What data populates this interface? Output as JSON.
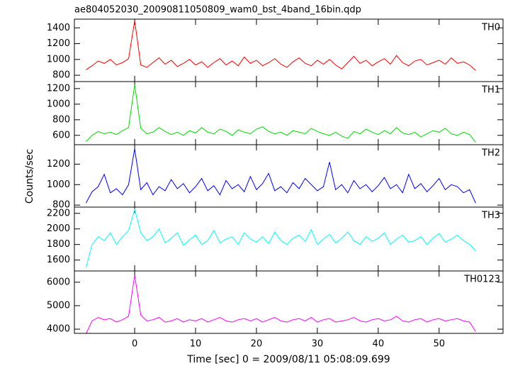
{
  "chart_data": [
    {
      "type": "line",
      "title": "ae804052030_20090811050809_wam0_bst_4band_16bin.qdp",
      "x": [
        -8,
        -7,
        -6,
        -5,
        -4,
        -3,
        -2,
        -1,
        0,
        1,
        2,
        3,
        4,
        5,
        6,
        7,
        8,
        9,
        10,
        11,
        12,
        13,
        14,
        15,
        16,
        17,
        18,
        19,
        20,
        21,
        22,
        23,
        24,
        25,
        26,
        27,
        28,
        29,
        30,
        31,
        32,
        33,
        34,
        35,
        36,
        37,
        38,
        39,
        40,
        41,
        42,
        43,
        44,
        45,
        46,
        47,
        48,
        49,
        50,
        51,
        52,
        53,
        54,
        55,
        56
      ],
      "series": [
        {
          "name": "TH0",
          "color": "#ff0000",
          "values": [
            870,
            920,
            980,
            950,
            1000,
            930,
            960,
            1010,
            1490,
            930,
            900,
            960,
            1020,
            940,
            990,
            910,
            950,
            1000,
            930,
            970,
            900,
            960,
            1010,
            930,
            980,
            920,
            1030,
            950,
            990,
            920,
            960,
            1010,
            940,
            900,
            970,
            1020,
            950,
            920,
            990,
            940,
            1000,
            930,
            880,
            960,
            1040,
            950,
            990,
            920,
            970,
            1010,
            940,
            1050,
            960,
            920,
            980,
            1000,
            930,
            960,
            990,
            940,
            1020,
            950,
            970,
            930,
            860
          ]
        }
      ],
      "xlim": [
        -9.9,
        60.5
      ],
      "xticks": [
        0,
        10,
        20,
        30,
        40,
        50
      ],
      "ylim": [
        720,
        1510
      ],
      "yticks": [
        800,
        1000,
        1200,
        1400
      ]
    },
    {
      "type": "line",
      "x": [
        -8,
        -7,
        -6,
        -5,
        -4,
        -3,
        -2,
        -1,
        0,
        1,
        2,
        3,
        4,
        5,
        6,
        7,
        8,
        9,
        10,
        11,
        12,
        13,
        14,
        15,
        16,
        17,
        18,
        19,
        20,
        21,
        22,
        23,
        24,
        25,
        26,
        27,
        28,
        29,
        30,
        31,
        32,
        33,
        34,
        35,
        36,
        37,
        38,
        39,
        40,
        41,
        42,
        43,
        44,
        45,
        46,
        47,
        48,
        49,
        50,
        51,
        52,
        53,
        54,
        55,
        56
      ],
      "series": [
        {
          "name": "TH1",
          "color": "#00dd00",
          "values": [
            520,
            600,
            650,
            620,
            640,
            610,
            660,
            700,
            1250,
            690,
            620,
            640,
            700,
            650,
            610,
            640,
            600,
            660,
            630,
            700,
            640,
            620,
            680,
            650,
            600,
            670,
            640,
            620,
            680,
            710,
            650,
            620,
            640,
            600,
            660,
            640,
            620,
            690,
            650,
            620,
            600,
            640,
            590,
            560,
            650,
            620,
            680,
            640,
            610,
            660,
            620,
            700,
            630,
            610,
            640,
            580,
            620,
            660,
            640,
            690,
            620,
            600,
            640,
            610,
            510
          ]
        }
      ],
      "xlim": [
        -9.9,
        60.5
      ],
      "xticks": [
        0,
        10,
        20,
        30,
        40,
        50
      ],
      "ylim": [
        480,
        1290
      ],
      "yticks": [
        600,
        800,
        1000,
        1200
      ]
    },
    {
      "type": "line",
      "y_label": "Counts/sec",
      "x": [
        -8,
        -7,
        -6,
        -5,
        -4,
        -3,
        -2,
        -1,
        0,
        1,
        2,
        3,
        4,
        5,
        6,
        7,
        8,
        9,
        10,
        11,
        12,
        13,
        14,
        15,
        16,
        17,
        18,
        19,
        20,
        21,
        22,
        23,
        24,
        25,
        26,
        27,
        28,
        29,
        30,
        31,
        32,
        33,
        34,
        35,
        36,
        37,
        38,
        39,
        40,
        41,
        42,
        43,
        44,
        45,
        46,
        47,
        48,
        49,
        50,
        51,
        52,
        53,
        54,
        55,
        56
      ],
      "series": [
        {
          "name": "TH2",
          "color": "#0000ff",
          "values": [
            820,
            930,
            980,
            1100,
            920,
            960,
            900,
            1000,
            1350,
            950,
            1020,
            900,
            980,
            940,
            1050,
            960,
            1010,
            920,
            980,
            1060,
            940,
            990,
            900,
            1040,
            960,
            1000,
            930,
            1080,
            950,
            1010,
            1110,
            940,
            980,
            920,
            1020,
            960,
            1060,
            1000,
            940,
            980,
            1220,
            950,
            1000,
            920,
            1040,
            960,
            1000,
            930,
            990,
            1070,
            960,
            1000,
            920,
            1100,
            960,
            1010,
            930,
            990,
            1060,
            950,
            1000,
            980,
            920,
            950,
            820
          ]
        }
      ],
      "xlim": [
        -9.9,
        60.5
      ],
      "xticks": [
        0,
        10,
        20,
        30,
        40,
        50
      ],
      "ylim": [
        780,
        1390
      ],
      "yticks": [
        800,
        1000,
        1200
      ]
    },
    {
      "type": "line",
      "x": [
        -8,
        -7,
        -6,
        -5,
        -4,
        -3,
        -2,
        -1,
        0,
        1,
        2,
        3,
        4,
        5,
        6,
        7,
        8,
        9,
        10,
        11,
        12,
        13,
        14,
        15,
        16,
        17,
        18,
        19,
        20,
        21,
        22,
        23,
        24,
        25,
        26,
        27,
        28,
        29,
        30,
        31,
        32,
        33,
        34,
        35,
        36,
        37,
        38,
        39,
        40,
        41,
        42,
        43,
        44,
        45,
        46,
        47,
        48,
        49,
        50,
        51,
        52,
        53,
        54,
        55,
        56
      ],
      "series": [
        {
          "name": "TH3",
          "color": "#00ffff",
          "values": [
            1500,
            1800,
            1900,
            1850,
            1950,
            1800,
            1900,
            1980,
            2250,
            1950,
            1850,
            1900,
            2000,
            1820,
            1880,
            1950,
            1790,
            1860,
            1920,
            1800,
            1850,
            1980,
            1820,
            1870,
            1900,
            1800,
            1950,
            1870,
            1830,
            1900,
            1810,
            1960,
            1850,
            1800,
            1880,
            1920,
            1840,
            1990,
            1800,
            1870,
            1930,
            1820,
            1880,
            1960,
            1850,
            1800,
            1900,
            1840,
            1880,
            1950,
            1800,
            1870,
            1920,
            1830,
            1850,
            1900,
            1800,
            1880,
            1940,
            1830,
            1870,
            1920,
            1850,
            1800,
            1720
          ]
        }
      ],
      "xlim": [
        -9.9,
        60.5
      ],
      "xticks": [
        0,
        10,
        20,
        30,
        40,
        50
      ],
      "ylim": [
        1460,
        2280
      ],
      "yticks": [
        1600,
        1800,
        2000,
        2200
      ]
    },
    {
      "type": "line",
      "x_label": "Time [sec] 0 = 2009/08/11 05:08:09.699",
      "x": [
        -8,
        -7,
        -6,
        -5,
        -4,
        -3,
        -2,
        -1,
        0,
        1,
        2,
        3,
        4,
        5,
        6,
        7,
        8,
        9,
        10,
        11,
        12,
        13,
        14,
        15,
        16,
        17,
        18,
        19,
        20,
        21,
        22,
        23,
        24,
        25,
        26,
        27,
        28,
        29,
        30,
        31,
        32,
        33,
        34,
        35,
        36,
        37,
        38,
        39,
        40,
        41,
        42,
        43,
        44,
        45,
        46,
        47,
        48,
        49,
        50,
        51,
        52,
        53,
        54,
        55,
        56
      ],
      "series": [
        {
          "name": "TH0123",
          "color": "#ff00ff",
          "values": [
            3800,
            4350,
            4500,
            4400,
            4450,
            4300,
            4400,
            4550,
            6300,
            4600,
            4350,
            4400,
            4500,
            4300,
            4350,
            4450,
            4300,
            4400,
            4350,
            4450,
            4300,
            4400,
            4500,
            4350,
            4300,
            4400,
            4450,
            4350,
            4450,
            4300,
            4400,
            4500,
            4350,
            4300,
            4400,
            4450,
            4350,
            4500,
            4300,
            4400,
            4450,
            4300,
            4350,
            4400,
            4500,
            4350,
            4300,
            4400,
            4450,
            4350,
            4400,
            4550,
            4350,
            4300,
            4400,
            4450,
            4300,
            4400,
            4450,
            4350,
            4400,
            4450,
            4350,
            4300,
            3900
          ]
        }
      ],
      "xlim": [
        -9.9,
        60.5
      ],
      "xticks": [
        0,
        10,
        20,
        30,
        40,
        50
      ],
      "ylim": [
        3820,
        6480
      ],
      "yticks": [
        4000,
        5000,
        6000
      ]
    }
  ]
}
